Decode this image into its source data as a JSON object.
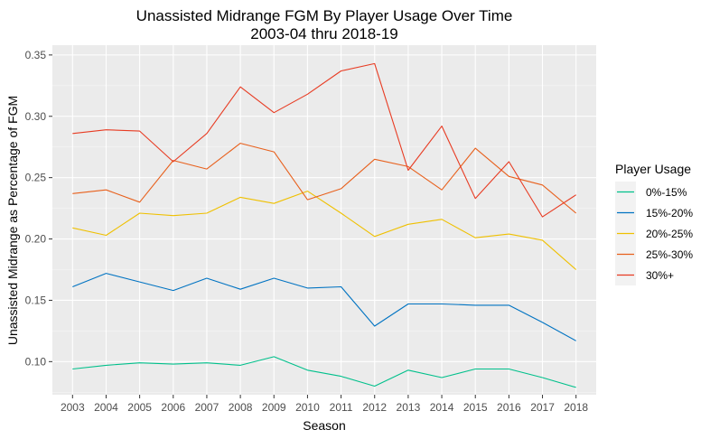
{
  "chart_data": {
    "type": "line",
    "title": "Unassisted Midrange FGM By Player Usage Over Time",
    "subtitle": "2003-04 thru 2018-19",
    "xlabel": "Season",
    "ylabel": "Unassisted Midrange as Percentage of FGM",
    "x": [
      2003,
      2004,
      2005,
      2006,
      2007,
      2008,
      2009,
      2010,
      2011,
      2012,
      2013,
      2014,
      2015,
      2016,
      2017,
      2018
    ],
    "x_ticks": [
      "2003",
      "2004",
      "2005",
      "2006",
      "2007",
      "2008",
      "2009",
      "2010",
      "2011",
      "2012",
      "2013",
      "2014",
      "2015",
      "2016",
      "2017",
      "2018"
    ],
    "ylim": [
      0.073,
      0.358
    ],
    "y_ticks": [
      "0.10",
      "0.15",
      "0.20",
      "0.25",
      "0.30",
      "0.35"
    ],
    "y_tick_values": [
      0.1,
      0.15,
      0.2,
      0.25,
      0.3,
      0.35
    ],
    "grid": true,
    "legend_title": "Player Usage",
    "legend_position": "right",
    "series": [
      {
        "name": "0%-15%",
        "color": "#00c08b",
        "values": [
          0.094,
          0.097,
          0.099,
          0.098,
          0.099,
          0.097,
          0.104,
          0.093,
          0.088,
          0.08,
          0.093,
          0.087,
          0.094,
          0.094,
          0.087,
          0.079
        ]
      },
      {
        "name": "15%-20%",
        "color": "#0073c2",
        "values": [
          0.161,
          0.172,
          0.165,
          0.158,
          0.168,
          0.159,
          0.168,
          0.16,
          0.161,
          0.129,
          0.147,
          0.147,
          0.146,
          0.146,
          0.132,
          0.117
        ]
      },
      {
        "name": "20%-25%",
        "color": "#efc000",
        "values": [
          0.209,
          0.203,
          0.221,
          0.219,
          0.221,
          0.234,
          0.229,
          0.239,
          0.221,
          0.202,
          0.212,
          0.216,
          0.201,
          0.204,
          0.199,
          0.175
        ]
      },
      {
        "name": "25%-30%",
        "color": "#e8601c",
        "values": [
          0.237,
          0.24,
          0.23,
          0.264,
          0.257,
          0.278,
          0.271,
          0.232,
          0.241,
          0.265,
          0.259,
          0.24,
          0.274,
          0.251,
          0.244,
          0.221
        ]
      },
      {
        "name": "30%+",
        "color": "#e83b22",
        "values": [
          0.286,
          0.289,
          0.288,
          0.263,
          0.286,
          0.324,
          0.303,
          0.318,
          0.337,
          0.343,
          0.256,
          0.292,
          0.233,
          0.263,
          0.218,
          0.236
        ]
      }
    ]
  }
}
